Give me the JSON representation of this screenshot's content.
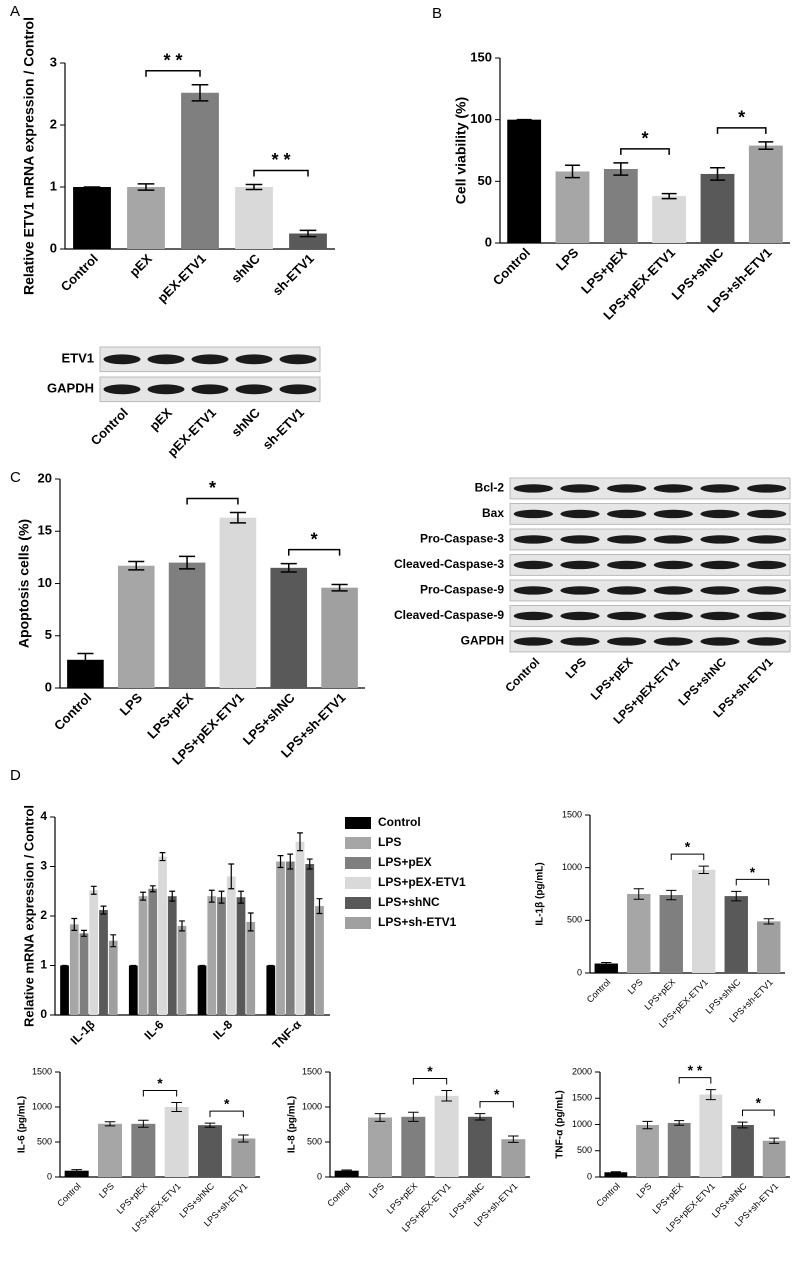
{
  "chart_data": [
    {
      "type": "bar",
      "panel": "A",
      "ylabel": "Relative ETV1 mRNA expression / Control",
      "categories": [
        "Control",
        "pEX",
        "pEX-ETV1",
        "shNC",
        "sh-ETV1"
      ],
      "values": [
        1,
        1,
        2.52,
        1,
        0.25
      ],
      "errors": [
        0,
        0.05,
        0.13,
        0.04,
        0.05
      ],
      "colors": [
        "#000000",
        "#a6a6a6",
        "#7f7f7f",
        "#d9d9d9",
        "#595959"
      ],
      "ylim": [
        0,
        3
      ],
      "yticks": [
        0,
        1,
        2,
        3
      ],
      "brackets": [
        {
          "between": [
            "pEX",
            "pEX-ETV1"
          ],
          "label": "* *"
        },
        {
          "between": [
            "shNC",
            "sh-ETV1"
          ],
          "label": "* *"
        }
      ]
    },
    {
      "type": "blot",
      "rows": [
        "ETV1",
        "GAPDH"
      ],
      "lanes": [
        "Control",
        "pEX",
        "pEX-ETV1",
        "shNC",
        "sh-ETV1"
      ]
    },
    {
      "type": "bar",
      "panel": "B",
      "ylabel": "Cell viability (%)",
      "categories": [
        "Control",
        "LPS",
        "LPS+pEX",
        "LPS+pEX-ETV1",
        "LPS+shNC",
        "LPS+sh-ETV1"
      ],
      "values": [
        100,
        58,
        60,
        38,
        56,
        79
      ],
      "errors": [
        0,
        5,
        5,
        2,
        5,
        3
      ],
      "colors": [
        "#000000",
        "#a6a6a6",
        "#7f7f7f",
        "#d9d9d9",
        "#595959",
        "#a0a0a0"
      ],
      "ylim": [
        0,
        150
      ],
      "yticks": [
        0,
        50,
        100,
        150
      ],
      "brackets": [
        {
          "between": [
            "LPS+pEX",
            "LPS+pEX-ETV1"
          ],
          "label": "*"
        },
        {
          "between": [
            "LPS+shNC",
            "LPS+sh-ETV1"
          ],
          "label": "*"
        }
      ]
    },
    {
      "type": "bar",
      "panel": "C",
      "ylabel": "Apoptosis cells (%)",
      "categories": [
        "Control",
        "LPS",
        "LPS+pEX",
        "LPS+pEX-ETV1",
        "LPS+shNC",
        "LPS+sh-ETV1"
      ],
      "values": [
        2.7,
        11.7,
        12,
        16.3,
        11.5,
        9.6
      ],
      "errors": [
        0.6,
        0.4,
        0.6,
        0.5,
        0.4,
        0.3
      ],
      "colors": [
        "#000000",
        "#a6a6a6",
        "#7f7f7f",
        "#d9d9d9",
        "#595959",
        "#a0a0a0"
      ],
      "ylim": [
        0,
        20
      ],
      "yticks": [
        0,
        5,
        10,
        15,
        20
      ],
      "brackets": [
        {
          "between": [
            "LPS+pEX",
            "LPS+pEX-ETV1"
          ],
          "label": "*"
        },
        {
          "between": [
            "LPS+shNC",
            "LPS+sh-ETV1"
          ],
          "label": "*"
        }
      ]
    },
    {
      "type": "blot",
      "rows": [
        "Bcl-2",
        "Bax",
        "Pro-Caspase-3",
        "Cleaved-Caspase-3",
        "Pro-Caspase-9",
        "Cleaved-Caspase-9",
        "GAPDH"
      ],
      "lanes": [
        "Control",
        "LPS",
        "LPS+pEX",
        "LPS+pEX-ETV1",
        "LPS+shNC",
        "LPS+sh-ETV1"
      ]
    },
    {
      "type": "grouped-bar",
      "panel": "D",
      "ylabel": "Relative mRNA expression / Control",
      "categories": [
        "IL-1β",
        "IL-6",
        "IL-8",
        "TNF-α"
      ],
      "series": [
        {
          "name": "Control",
          "color": "#000000",
          "values": [
            1,
            1,
            1,
            1
          ],
          "errors": [
            0,
            0,
            0,
            0
          ]
        },
        {
          "name": "LPS",
          "color": "#a6a6a6",
          "values": [
            1.83,
            2.4,
            2.4,
            3.1
          ],
          "errors": [
            0.12,
            0.08,
            0.12,
            0.12
          ]
        },
        {
          "name": "LPS+pEX",
          "color": "#7f7f7f",
          "values": [
            1.65,
            2.55,
            2.38,
            3.1
          ],
          "errors": [
            0.06,
            0.06,
            0.12,
            0.15
          ]
        },
        {
          "name": "LPS+pEX-ETV1",
          "color": "#d9d9d9",
          "values": [
            2.52,
            3.2,
            2.8,
            3.5
          ],
          "errors": [
            0.08,
            0.08,
            0.25,
            0.18
          ]
        },
        {
          "name": "LPS+shNC",
          "color": "#595959",
          "values": [
            2.12,
            2.4,
            2.38,
            3.05
          ],
          "errors": [
            0.08,
            0.1,
            0.12,
            0.1
          ]
        },
        {
          "name": "LPS+sh-ETV1",
          "color": "#a0a0a0",
          "values": [
            1.5,
            1.8,
            1.88,
            2.2
          ],
          "errors": [
            0.12,
            0.1,
            0.18,
            0.15
          ]
        }
      ],
      "ylim": [
        0,
        4
      ],
      "yticks": [
        0,
        1,
        2,
        3,
        4
      ]
    },
    {
      "type": "bar",
      "ylabel": "IL-1β (pg/mL)",
      "categories": [
        "Control",
        "LPS",
        "LPS+pEX",
        "LPS+pEX-ETV1",
        "LPS+shNC",
        "LPS+sh-ETV1"
      ],
      "values": [
        90,
        750,
        740,
        980,
        730,
        490
      ],
      "errors": [
        10,
        50,
        45,
        35,
        45,
        25
      ],
      "colors": [
        "#000000",
        "#a6a6a6",
        "#7f7f7f",
        "#d9d9d9",
        "#595959",
        "#a0a0a0"
      ],
      "ylim": [
        0,
        1500
      ],
      "yticks": [
        0,
        500,
        1000,
        1500
      ],
      "brackets": [
        {
          "between": [
            "LPS+pEX",
            "LPS+pEX-ETV1"
          ],
          "label": "*"
        },
        {
          "between": [
            "LPS+shNC",
            "LPS+sh-ETV1"
          ],
          "label": "*"
        }
      ]
    },
    {
      "type": "bar",
      "ylabel": "IL-6 (pg/mL)",
      "categories": [
        "Control",
        "LPS",
        "LPS+pEX",
        "LPS+pEX-ETV1",
        "LPS+shNC",
        "LPS+sh-ETV1"
      ],
      "values": [
        90,
        760,
        760,
        1000,
        740,
        550
      ],
      "errors": [
        15,
        30,
        50,
        65,
        30,
        50
      ],
      "colors": [
        "#000000",
        "#a6a6a6",
        "#7f7f7f",
        "#d9d9d9",
        "#595959",
        "#a0a0a0"
      ],
      "ylim": [
        0,
        1500
      ],
      "yticks": [
        0,
        500,
        1000,
        1500
      ],
      "brackets": [
        {
          "between": [
            "LPS+pEX",
            "LPS+pEX-ETV1"
          ],
          "label": "*"
        },
        {
          "between": [
            "LPS+shNC",
            "LPS+sh-ETV1"
          ],
          "label": "*"
        }
      ]
    },
    {
      "type": "bar",
      "ylabel": "IL-8 (pg/mL)",
      "categories": [
        "Control",
        "LPS",
        "LPS+pEX",
        "LPS+pEX-ETV1",
        "LPS+shNC",
        "LPS+sh-ETV1"
      ],
      "values": [
        90,
        850,
        860,
        1160,
        860,
        540
      ],
      "errors": [
        10,
        55,
        65,
        75,
        45,
        45
      ],
      "colors": [
        "#000000",
        "#a6a6a6",
        "#7f7f7f",
        "#d9d9d9",
        "#595959",
        "#a0a0a0"
      ],
      "ylim": [
        0,
        1500
      ],
      "yticks": [
        0,
        500,
        1000,
        1500
      ],
      "brackets": [
        {
          "between": [
            "LPS+pEX",
            "LPS+pEX-ETV1"
          ],
          "label": "*"
        },
        {
          "between": [
            "LPS+shNC",
            "LPS+sh-ETV1"
          ],
          "label": "*"
        }
      ]
    },
    {
      "type": "bar",
      "ylabel": "TNF-α (pg/mL)",
      "categories": [
        "Control",
        "LPS",
        "LPS+pEX",
        "LPS+pEX-ETV1",
        "LPS+shNC",
        "LPS+sh-ETV1"
      ],
      "values": [
        90,
        990,
        1030,
        1570,
        990,
        690
      ],
      "errors": [
        10,
        70,
        45,
        95,
        55,
        50
      ],
      "colors": [
        "#000000",
        "#a6a6a6",
        "#7f7f7f",
        "#d9d9d9",
        "#595959",
        "#a0a0a0"
      ],
      "ylim": [
        0,
        2000
      ],
      "yticks": [
        0,
        500,
        1000,
        1500,
        2000
      ],
      "brackets": [
        {
          "between": [
            "LPS+pEX",
            "LPS+pEX-ETV1"
          ],
          "label": "* *"
        },
        {
          "between": [
            "LPS+shNC",
            "LPS+sh-ETV1"
          ],
          "label": "*"
        }
      ]
    }
  ]
}
